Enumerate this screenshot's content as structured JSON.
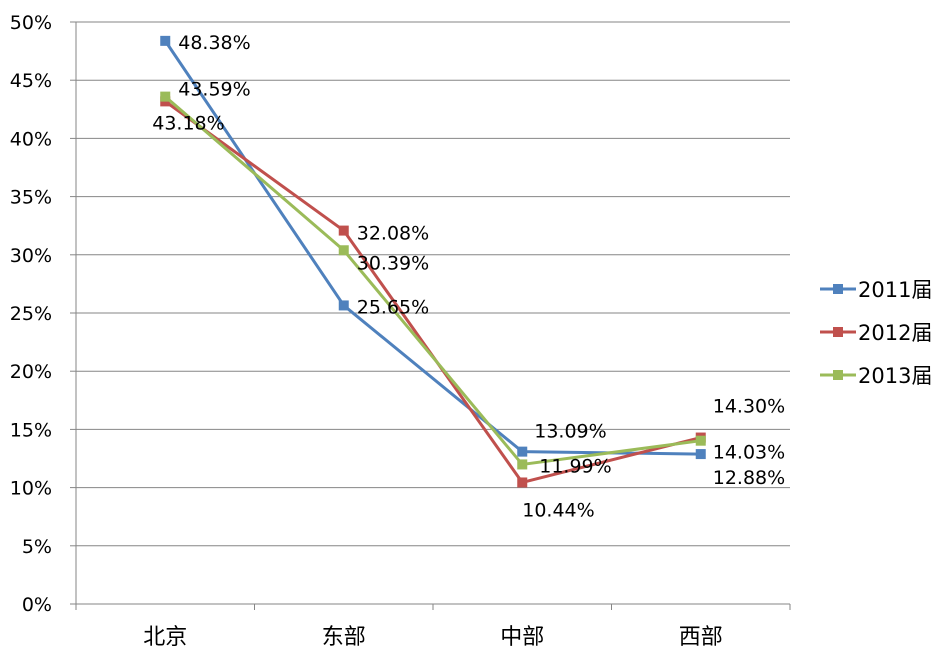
{
  "chart_data": {
    "type": "line",
    "title": "",
    "xlabel": "",
    "ylabel": "",
    "categories": [
      "北京",
      "东部",
      "中部",
      "西部"
    ],
    "ylim": [
      0,
      0.5
    ],
    "yticks": [
      0,
      0.05,
      0.1,
      0.15,
      0.2,
      0.25,
      0.3,
      0.35,
      0.4,
      0.45,
      0.5
    ],
    "ytick_labels": [
      "0%",
      "5%",
      "10%",
      "15%",
      "20%",
      "25%",
      "30%",
      "35%",
      "40%",
      "45%",
      "50%"
    ],
    "grid": true,
    "legend_position": "right",
    "series": [
      {
        "name": "2011届",
        "color": "#4F81BD",
        "values": [
          0.4838,
          0.2565,
          0.1309,
          0.1288
        ],
        "labels": [
          "48.38%",
          "25.65%",
          "13.09%",
          "12.88%"
        ]
      },
      {
        "name": "2012届",
        "color": "#C0504D",
        "values": [
          0.4318,
          0.3208,
          0.1044,
          0.143
        ],
        "labels": [
          "43.18%",
          "32.08%",
          "10.44%",
          "14.30%"
        ]
      },
      {
        "name": "2013届",
        "color": "#9BBB59",
        "values": [
          0.4359,
          0.3039,
          0.1199,
          0.1403
        ],
        "labels": [
          "43.59%",
          "30.39%",
          "11.99%",
          "14.03%"
        ]
      }
    ]
  }
}
